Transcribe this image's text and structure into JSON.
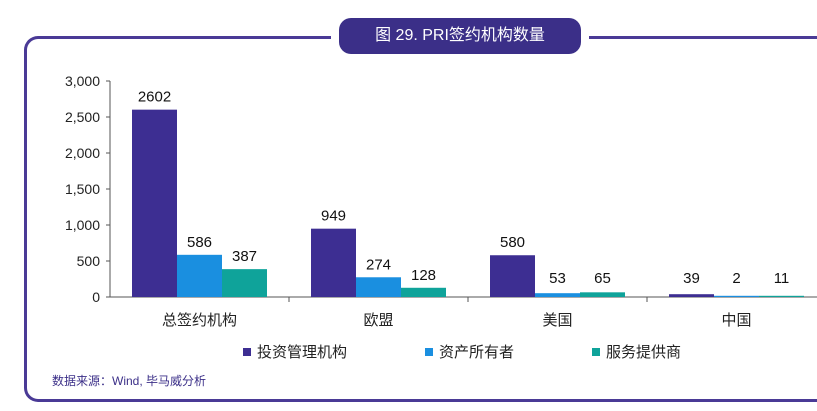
{
  "title": "图 29. PRI签约机构数量",
  "source": "数据来源：Wind, 毕马威分析",
  "colors": {
    "accent": "#3b2f88",
    "series": [
      "#3d2e92",
      "#1a8fe0",
      "#0fa39a"
    ]
  },
  "chart_data": {
    "type": "bar",
    "title": "图 29. PRI签约机构数量",
    "categories": [
      "总签约机构",
      "欧盟",
      "美国",
      "中国"
    ],
    "series": [
      {
        "name": "投资管理机构",
        "values": [
          2602,
          949,
          580,
          39
        ]
      },
      {
        "name": "资产所有者",
        "values": [
          586,
          274,
          53,
          2
        ]
      },
      {
        "name": "服务提供商",
        "values": [
          387,
          128,
          65,
          11
        ]
      }
    ],
    "ylim": [
      0,
      3000
    ],
    "yticks": [
      "0",
      "500",
      "1,000",
      "1,500",
      "2,000",
      "2,500",
      "3,000"
    ],
    "ytick_values": [
      0,
      500,
      1000,
      1500,
      2000,
      2500,
      3000
    ],
    "legend_position": "bottom",
    "grid": false
  }
}
